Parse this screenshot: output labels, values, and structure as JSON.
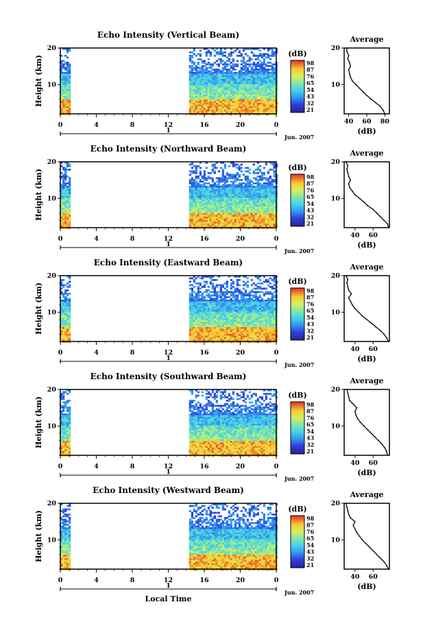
{
  "chart_data": [
    {
      "type": "heatmap",
      "title": "Echo Intensity (Vertical Beam)",
      "ylabel": "Height (km)",
      "x_ticks": [
        "0",
        "4",
        "8",
        "12",
        "16",
        "20",
        "0"
      ],
      "y_ticks": [
        "10",
        "20"
      ],
      "ylim": [
        2,
        20
      ],
      "day_label": "1",
      "date_label": "Jun. 2007",
      "data_coverage_hours": [
        [
          0,
          1
        ],
        [
          14.3,
          24
        ]
      ],
      "colorbar": {
        "label": "(dB)",
        "ticks": [
          "98",
          "87",
          "76",
          "65",
          "54",
          "43",
          "32",
          "21"
        ],
        "range": [
          21,
          98
        ]
      },
      "profile": {
        "title": "Average",
        "xlabel": "(dB)",
        "x_ticks": [
          "40",
          "60",
          "80"
        ],
        "xlim": [
          35,
          85
        ],
        "y_ticks": [
          "10",
          "20"
        ],
        "height_km": [
          2,
          3,
          4,
          5,
          6,
          7,
          8,
          9,
          10,
          11,
          12,
          13,
          14,
          15,
          16,
          17,
          18,
          19,
          20
        ],
        "mean_db": [
          80,
          78,
          75,
          70,
          65,
          60,
          56,
          52,
          48,
          44,
          42,
          41,
          40,
          42,
          41,
          39,
          40,
          38,
          38
        ]
      }
    },
    {
      "type": "heatmap",
      "title": "Echo Intensity (Northward Beam)",
      "ylabel": "Height (km)",
      "x_ticks": [
        "0",
        "4",
        "8",
        "12",
        "16",
        "20",
        "0"
      ],
      "y_ticks": [
        "10",
        "20"
      ],
      "ylim": [
        2,
        20
      ],
      "day_label": "1",
      "date_label": "Jun. 2007",
      "data_coverage_hours": [
        [
          0,
          1
        ],
        [
          14.3,
          24
        ]
      ],
      "colorbar": {
        "label": "(dB)",
        "ticks": [
          "98",
          "87",
          "76",
          "65",
          "54",
          "43",
          "32",
          "21"
        ],
        "range": [
          21,
          98
        ]
      },
      "profile": {
        "title": "Average",
        "xlabel": "(dB)",
        "x_ticks": [
          "40",
          "60"
        ],
        "xlim": [
          28,
          78
        ],
        "y_ticks": [
          "10",
          "20"
        ],
        "height_km": [
          2,
          3,
          4,
          5,
          6,
          7,
          8,
          9,
          10,
          11,
          12,
          13,
          14,
          15,
          16,
          17,
          18,
          19,
          20
        ],
        "mean_db": [
          77,
          76,
          72,
          68,
          64,
          60,
          54,
          50,
          45,
          40,
          37,
          34,
          33,
          35,
          33,
          32,
          31,
          32,
          30
        ]
      }
    },
    {
      "type": "heatmap",
      "title": "Echo Intensity (Eastward Beam)",
      "ylabel": "Height (km)",
      "x_ticks": [
        "0",
        "4",
        "8",
        "12",
        "16",
        "20",
        "0"
      ],
      "y_ticks": [
        "10",
        "20"
      ],
      "ylim": [
        2,
        20
      ],
      "day_label": "1",
      "date_label": "Jun. 2007",
      "data_coverage_hours": [
        [
          0,
          1
        ],
        [
          14.3,
          24
        ]
      ],
      "colorbar": {
        "label": "(dB)",
        "ticks": [
          "98",
          "87",
          "76",
          "65",
          "54",
          "43",
          "32",
          "21"
        ],
        "range": [
          21,
          98
        ]
      },
      "profile": {
        "title": "Average",
        "xlabel": "(dB)",
        "x_ticks": [
          "40",
          "60"
        ],
        "xlim": [
          28,
          78
        ],
        "y_ticks": [
          "10",
          "20"
        ],
        "height_km": [
          2,
          3,
          4,
          5,
          6,
          7,
          8,
          9,
          10,
          11,
          12,
          13,
          14,
          15,
          16,
          17,
          18,
          19,
          20
        ],
        "mean_db": [
          77,
          75,
          72,
          68,
          63,
          58,
          53,
          48,
          44,
          40,
          37,
          35,
          33,
          36,
          33,
          32,
          31,
          32,
          30
        ]
      }
    },
    {
      "type": "heatmap",
      "title": "Echo Intensity (Southward Beam)",
      "ylabel": "Height (km)",
      "x_ticks": [
        "0",
        "4",
        "8",
        "12",
        "16",
        "20",
        "0"
      ],
      "y_ticks": [
        "10",
        "20"
      ],
      "ylim": [
        2,
        20
      ],
      "day_label": "1",
      "date_label": "Jun. 2007",
      "data_coverage_hours": [
        [
          0,
          1
        ],
        [
          14.3,
          24
        ]
      ],
      "colorbar": {
        "label": "(dB)",
        "ticks": [
          "98",
          "87",
          "76",
          "65",
          "54",
          "43",
          "32",
          "21"
        ],
        "range": [
          21,
          98
        ]
      },
      "profile": {
        "title": "Average",
        "xlabel": "(dB)",
        "x_ticks": [
          "40",
          "60"
        ],
        "xlim": [
          28,
          78
        ],
        "y_ticks": [
          "10",
          "20"
        ],
        "height_km": [
          2,
          3,
          4,
          5,
          6,
          7,
          8,
          9,
          10,
          11,
          12,
          13,
          14,
          15,
          16,
          17,
          18,
          19,
          20
        ],
        "mean_db": [
          76,
          75,
          73,
          70,
          66,
          62,
          58,
          54,
          50,
          46,
          43,
          41,
          40,
          42,
          38,
          34,
          33,
          32,
          31
        ]
      }
    },
    {
      "type": "heatmap",
      "title": "Echo Intensity (Westward Beam)",
      "ylabel": "Height (km)",
      "xlabel": "Local Time",
      "x_ticks": [
        "0",
        "4",
        "8",
        "12",
        "16",
        "20",
        "0"
      ],
      "y_ticks": [
        "10",
        "20"
      ],
      "ylim": [
        2,
        20
      ],
      "day_label": "1",
      "date_label": "Jun. 2007",
      "data_coverage_hours": [
        [
          0,
          1
        ],
        [
          14.3,
          24
        ]
      ],
      "colorbar": {
        "label": "(dB)",
        "ticks": [
          "98",
          "87",
          "76",
          "65",
          "54",
          "43",
          "32",
          "21"
        ],
        "range": [
          21,
          98
        ]
      },
      "profile": {
        "title": "Average",
        "xlabel": "(dB)",
        "x_ticks": [
          "40",
          "60"
        ],
        "xlim": [
          28,
          78
        ],
        "y_ticks": [
          "10",
          "20"
        ],
        "height_km": [
          2,
          3,
          4,
          5,
          6,
          7,
          8,
          9,
          10,
          11,
          12,
          13,
          14,
          15,
          16,
          17,
          18,
          19,
          20
        ],
        "mean_db": [
          77,
          75,
          72,
          68,
          64,
          60,
          56,
          52,
          48,
          45,
          42,
          40,
          38,
          40,
          35,
          33,
          32,
          31,
          30
        ]
      }
    }
  ]
}
